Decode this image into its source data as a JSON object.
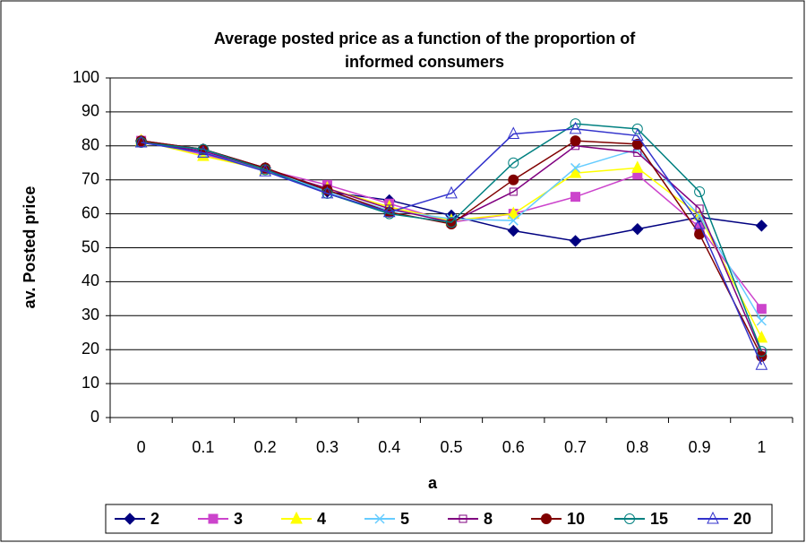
{
  "chart_data": {
    "type": "line",
    "title": [
      "Average posted price as a function of the proportion of",
      "informed consumers"
    ],
    "x_label": "a",
    "y_label": "av. Posted price",
    "categories": [
      "0",
      "0.1",
      "0.2",
      "0.3",
      "0.4",
      "0.5",
      "0.6",
      "0.7",
      "0.8",
      "0.9",
      "1"
    ],
    "ylim": [
      0,
      100
    ],
    "yticks": [
      0,
      10,
      20,
      30,
      40,
      50,
      60,
      70,
      80,
      90,
      100
    ],
    "grid": true,
    "legend": "bottom",
    "series": [
      {
        "name": "2",
        "color": "#000080",
        "marker": "diamond",
        "values": [
          81.5,
          79,
          73.5,
          66.5,
          64,
          59.5,
          55,
          52,
          55.5,
          59,
          56.5
        ]
      },
      {
        "name": "3",
        "color": "#cc44cc",
        "marker": "square",
        "values": [
          81.5,
          77.5,
          73,
          68.5,
          63,
          57.5,
          60,
          65,
          71.5,
          56,
          32
        ]
      },
      {
        "name": "4",
        "color": "#ffff00",
        "marker": "triangle",
        "values": [
          81.5,
          77,
          73,
          67.5,
          62,
          58,
          60,
          72,
          73.5,
          59.5,
          23.5
        ]
      },
      {
        "name": "5",
        "color": "#66ccff",
        "marker": "x",
        "values": [
          81,
          78,
          73,
          66.5,
          61,
          58.5,
          58,
          73.5,
          79,
          59.5,
          28.5
        ]
      },
      {
        "name": "8",
        "color": "#800080",
        "marker": "square-open",
        "values": [
          81,
          78.5,
          73,
          67.5,
          61.5,
          57.5,
          66.5,
          80,
          78,
          61.5,
          19
        ]
      },
      {
        "name": "10",
        "color": "#800000",
        "marker": "circle",
        "values": [
          81.5,
          79,
          73.5,
          67,
          60.5,
          57,
          70,
          81.5,
          80.5,
          54,
          18
        ]
      },
      {
        "name": "15",
        "color": "#008080",
        "marker": "circle-open",
        "values": [
          81,
          79,
          73,
          66,
          60,
          57.5,
          75,
          86.5,
          85,
          66.5,
          19.5
        ]
      },
      {
        "name": "20",
        "color": "#3333cc",
        "marker": "triangle-open",
        "values": [
          81,
          78,
          72.5,
          66,
          60.5,
          66,
          83.5,
          85,
          83,
          57,
          15.5
        ]
      }
    ]
  }
}
